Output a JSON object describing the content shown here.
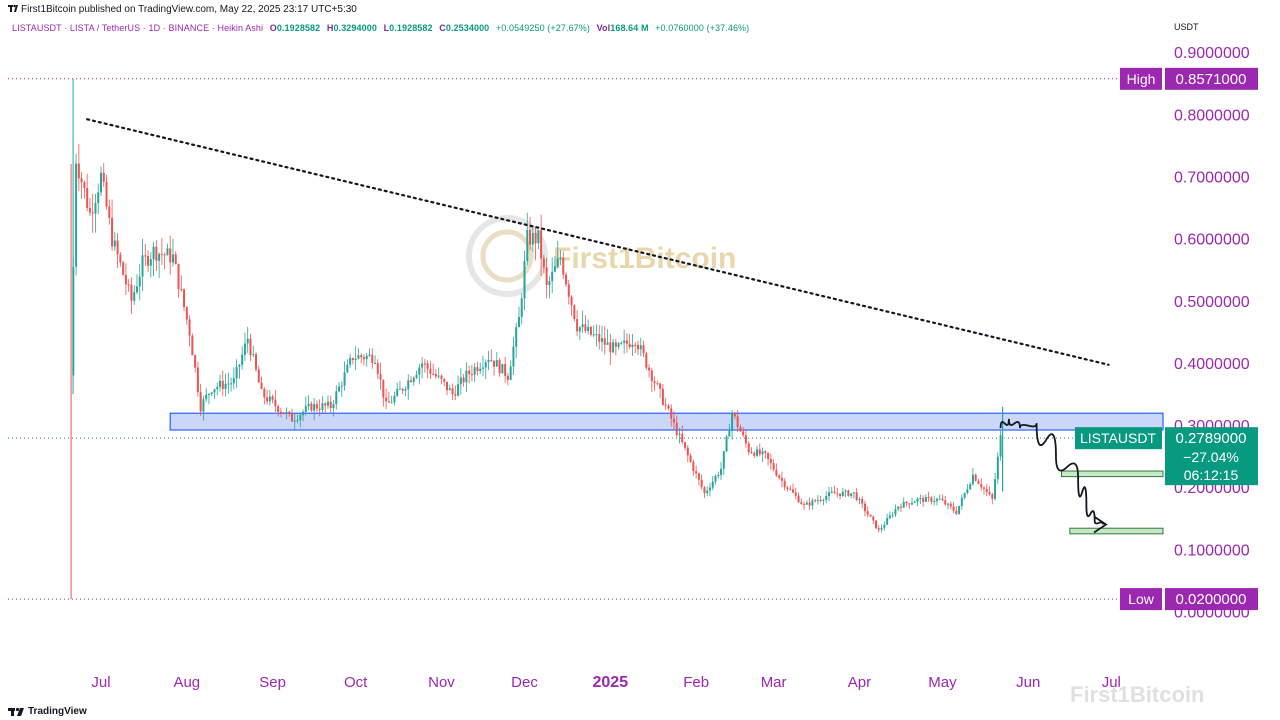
{
  "header": {
    "published_by": "First1Bitcoin published on TradingView.com, May 22, 2025 23:17 UTC+5:30"
  },
  "legend": {
    "symbol": "LISTAUSDT · LISTA / TetherUS · 1D · BINANCE · Heikin Ashi",
    "o_label": "O",
    "o_value": "0.1928582",
    "h_label": "H",
    "h_value": "0.3294000",
    "l_label": "L",
    "l_value": "0.1928582",
    "c_label": "C",
    "c_value": "0.2534000",
    "change": "+0.0549250 (+27.67%)",
    "vol_label": "Vol",
    "vol_value": "168.64 M",
    "vol_change": "+0.0760000 (+37.46%)"
  },
  "currency": "USDT",
  "watermark": "First1Bitcoin",
  "corner_watermark": "First1Bitcoin",
  "footer": {
    "brand": "TradingView"
  },
  "colors": {
    "up": "#26a69a",
    "down": "#ef5350",
    "accent": "#9c27b0",
    "price_badge": "#089981",
    "zone": "#b8c9f5",
    "zone_border": "#2962ff",
    "target_zone": "#c8e6c9",
    "target_border": "#2e7d32",
    "axis_text": "#9c27b0"
  },
  "chart_data": {
    "type": "candlestick",
    "style": "Heikin Ashi",
    "y_axis": {
      "ticks": [
        0.9,
        0.8,
        0.7,
        0.6,
        0.5,
        0.4,
        0.3,
        0.2,
        0.1,
        0.0
      ],
      "tick_labels": [
        "0.9000000",
        "0.8000000",
        "0.7000000",
        "0.6000000",
        "0.5000000",
        "0.4000000",
        "0.3000000",
        "0.2000000",
        "0.1000000",
        "0.0000000"
      ],
      "ylim": [
        -0.01,
        0.92
      ]
    },
    "x_axis": {
      "labels": [
        "Jul",
        "Aug",
        "Sep",
        "Oct",
        "Nov",
        "Dec",
        "2025",
        "Feb",
        "Mar",
        "Apr",
        "May",
        "Jun",
        "Jul"
      ],
      "bold_labels": [
        "2025"
      ],
      "dates": [
        "2024-07-01",
        "2024-08-01",
        "2024-09-01",
        "2024-10-01",
        "2024-11-01",
        "2024-12-01",
        "2025-01-01",
        "2025-02-01",
        "2025-03-01",
        "2025-04-01",
        "2025-05-01",
        "2025-06-01",
        "2025-07-01"
      ]
    },
    "high_marker": {
      "label": "High",
      "value": 0.8571,
      "text": "0.8571000"
    },
    "low_marker": {
      "label": "Low",
      "value": 0.02,
      "text": "0.0200000"
    },
    "last_price": {
      "symbol": "LISTAUSDT",
      "value": 0.2789,
      "text": "0.2789000",
      "change": "−27.04%",
      "countdown": "06:12:15"
    },
    "support_zone": {
      "from": "2024-07-26",
      "to": "2025-06-30",
      "low": 0.292,
      "high": 0.319
    },
    "target_zones": [
      {
        "from": "2025-06-13",
        "to": "2025-06-30",
        "low": 0.217,
        "high": 0.226
      },
      {
        "from": "2025-06-16",
        "to": "2025-06-30",
        "low": 0.125,
        "high": 0.134
      }
    ],
    "trendline": {
      "start": {
        "date": "2024-06-26",
        "value": 0.792
      },
      "end": {
        "date": "2025-06-30",
        "value": 0.397
      }
    },
    "projection_path": [
      {
        "date": "2025-05-22",
        "value": 0.295
      },
      {
        "date": "2025-05-25",
        "value": 0.31
      },
      {
        "date": "2025-05-29",
        "value": 0.295
      },
      {
        "date": "2025-06-04",
        "value": 0.303
      },
      {
        "date": "2025-06-11",
        "value": 0.25
      },
      {
        "date": "2025-06-19",
        "value": 0.215
      },
      {
        "date": "2025-06-22",
        "value": 0.17
      },
      {
        "date": "2025-06-25",
        "value": 0.145
      },
      {
        "date": "2025-06-28",
        "value": 0.14
      }
    ],
    "price_path": [
      {
        "date": "2024-06-20",
        "value": 0.38
      },
      {
        "date": "2024-06-22",
        "value": 0.73
      },
      {
        "date": "2024-06-27",
        "value": 0.64
      },
      {
        "date": "2024-07-01",
        "value": 0.7
      },
      {
        "date": "2024-07-05",
        "value": 0.6
      },
      {
        "date": "2024-07-12",
        "value": 0.5
      },
      {
        "date": "2024-07-16",
        "value": 0.56
      },
      {
        "date": "2024-07-20",
        "value": 0.58
      },
      {
        "date": "2024-07-27",
        "value": 0.57
      },
      {
        "date": "2024-08-02",
        "value": 0.45
      },
      {
        "date": "2024-08-06",
        "value": 0.33
      },
      {
        "date": "2024-08-10",
        "value": 0.36
      },
      {
        "date": "2024-08-18",
        "value": 0.37
      },
      {
        "date": "2024-08-23",
        "value": 0.44
      },
      {
        "date": "2024-08-28",
        "value": 0.35
      },
      {
        "date": "2024-09-08",
        "value": 0.31
      },
      {
        "date": "2024-09-15",
        "value": 0.33
      },
      {
        "date": "2024-09-22",
        "value": 0.33
      },
      {
        "date": "2024-09-30",
        "value": 0.41
      },
      {
        "date": "2024-10-08",
        "value": 0.41
      },
      {
        "date": "2024-10-12",
        "value": 0.33
      },
      {
        "date": "2024-10-18",
        "value": 0.36
      },
      {
        "date": "2024-10-25",
        "value": 0.4
      },
      {
        "date": "2024-11-01",
        "value": 0.37
      },
      {
        "date": "2024-11-05",
        "value": 0.35
      },
      {
        "date": "2024-11-10",
        "value": 0.38
      },
      {
        "date": "2024-11-18",
        "value": 0.41
      },
      {
        "date": "2024-11-25",
        "value": 0.38
      },
      {
        "date": "2024-11-29",
        "value": 0.47
      },
      {
        "date": "2024-12-02",
        "value": 0.6
      },
      {
        "date": "2024-12-06",
        "value": 0.6
      },
      {
        "date": "2024-12-09",
        "value": 0.52
      },
      {
        "date": "2024-12-14",
        "value": 0.57
      },
      {
        "date": "2024-12-20",
        "value": 0.46
      },
      {
        "date": "2024-12-27",
        "value": 0.44
      },
      {
        "date": "2025-01-03",
        "value": 0.42
      },
      {
        "date": "2025-01-10",
        "value": 0.44
      },
      {
        "date": "2025-01-16",
        "value": 0.38
      },
      {
        "date": "2025-01-23",
        "value": 0.31
      },
      {
        "date": "2025-01-30",
        "value": 0.24
      },
      {
        "date": "2025-02-04",
        "value": 0.19
      },
      {
        "date": "2025-02-10",
        "value": 0.23
      },
      {
        "date": "2025-02-14",
        "value": 0.32
      },
      {
        "date": "2025-02-20",
        "value": 0.26
      },
      {
        "date": "2025-02-26",
        "value": 0.25
      },
      {
        "date": "2025-03-04",
        "value": 0.21
      },
      {
        "date": "2025-03-12",
        "value": 0.17
      },
      {
        "date": "2025-03-22",
        "value": 0.19
      },
      {
        "date": "2025-03-30",
        "value": 0.19
      },
      {
        "date": "2025-04-08",
        "value": 0.13
      },
      {
        "date": "2025-04-15",
        "value": 0.17
      },
      {
        "date": "2025-04-22",
        "value": 0.18
      },
      {
        "date": "2025-04-30",
        "value": 0.18
      },
      {
        "date": "2025-05-06",
        "value": 0.16
      },
      {
        "date": "2025-05-12",
        "value": 0.22
      },
      {
        "date": "2025-05-19",
        "value": 0.18
      },
      {
        "date": "2025-05-22",
        "value": 0.28
      }
    ]
  }
}
